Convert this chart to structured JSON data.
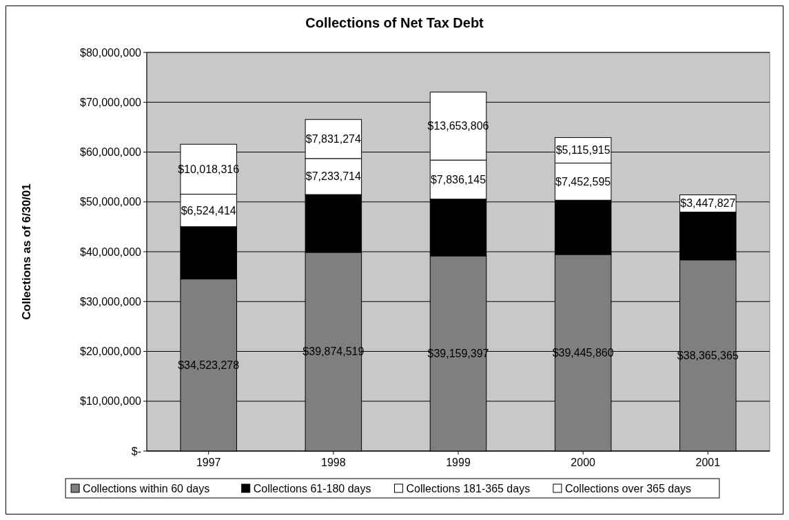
{
  "chart_data": {
    "type": "bar",
    "title": "Collections of Net Tax Debt",
    "ylabel": "Collections as of 6/30/01",
    "categories": [
      "1997",
      "1998",
      "1999",
      "2000",
      "2001"
    ],
    "stacked": true,
    "series": [
      {
        "name": "Collections within 60 days",
        "color": "#7f7f7f",
        "values": [
          34523278,
          39874519,
          39159397,
          39445860,
          38365365
        ],
        "value_labels": [
          "$34,523,278",
          "$39,874,519",
          "$39,159,397",
          "$39,445,860",
          "$38,365,365"
        ]
      },
      {
        "name": "Collections 61-180 days",
        "color": "#000000",
        "values": [
          10500000,
          11600000,
          11400000,
          10900000,
          9600000
        ],
        "value_labels": [
          null,
          null,
          null,
          null,
          null
        ]
      },
      {
        "name": "Collections 181-365 days",
        "color": "#ffffff",
        "values": [
          6524414,
          7233714,
          7836145,
          7452595,
          null
        ],
        "value_labels": [
          "$6,524,414",
          "$7,233,714",
          "$7,836,145",
          "$7,452,595",
          null
        ]
      },
      {
        "name": "Collections over 365 days",
        "color": "#ffffff",
        "values": [
          10018316,
          7831274,
          13653806,
          5115915,
          3447827
        ],
        "value_labels": [
          "$10,018,316",
          "$7,831,274",
          "$13,653,806",
          "$5,115,915",
          "$3,447,827"
        ]
      }
    ],
    "ylim": [
      0,
      80000000
    ],
    "yticks": [
      {
        "value": 0,
        "label": "$-"
      },
      {
        "value": 10000000,
        "label": "$10,000,000"
      },
      {
        "value": 20000000,
        "label": "$20,000,000"
      },
      {
        "value": 30000000,
        "label": "$30,000,000"
      },
      {
        "value": 40000000,
        "label": "$40,000,000"
      },
      {
        "value": 50000000,
        "label": "$50,000,000"
      },
      {
        "value": 60000000,
        "label": "$60,000,000"
      },
      {
        "value": 70000000,
        "label": "$70,000,000"
      },
      {
        "value": 80000000,
        "label": "$80,000,000"
      }
    ],
    "grid": "y",
    "legend": "bottom"
  }
}
